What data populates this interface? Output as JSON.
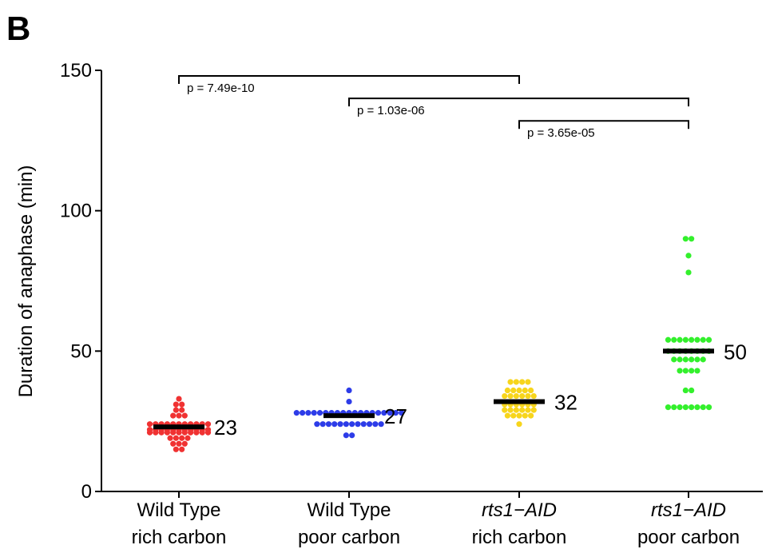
{
  "panel_label": "B",
  "chart_data": {
    "type": "scatter",
    "title": "",
    "ylabel": "Duration of anaphase (min)",
    "xlabel": "",
    "ylim": [
      0,
      150
    ],
    "yticks": [
      0,
      50,
      100,
      150
    ],
    "categories": [
      {
        "line1": "Wild Type",
        "line2": "rich carbon",
        "italic_line1": false
      },
      {
        "line1": "Wild Type",
        "line2": "poor carbon",
        "italic_line1": false
      },
      {
        "line1": "rts1−AID",
        "line2": "rich carbon",
        "italic_line1": true
      },
      {
        "line1": "rts1−AID",
        "line2": "poor carbon",
        "italic_line1": true
      }
    ],
    "series": [
      {
        "color": "#f03232",
        "median": 23,
        "median_label": "23",
        "points": [
          {
            "y": 33,
            "n": 1
          },
          {
            "y": 31,
            "n": 2
          },
          {
            "y": 29,
            "n": 2
          },
          {
            "y": 27,
            "n": 3
          },
          {
            "y": 24,
            "n": 11
          },
          {
            "y": 22,
            "n": 11
          },
          {
            "y": 21,
            "n": 11
          },
          {
            "y": 19,
            "n": 4
          },
          {
            "y": 17,
            "n": 3
          },
          {
            "y": 15,
            "n": 2
          }
        ]
      },
      {
        "color": "#2d3ce8",
        "median": 27,
        "median_label": "27",
        "points": [
          {
            "y": 36,
            "n": 1
          },
          {
            "y": 32,
            "n": 1
          },
          {
            "y": 28,
            "n": 19
          },
          {
            "y": 24,
            "n": 12
          },
          {
            "y": 20,
            "n": 2
          }
        ]
      },
      {
        "color": "#f7d51c",
        "median": 32,
        "median_label": "32",
        "points": [
          {
            "y": 39,
            "n": 4
          },
          {
            "y": 36,
            "n": 5
          },
          {
            "y": 34,
            "n": 6
          },
          {
            "y": 31,
            "n": 6
          },
          {
            "y": 29,
            "n": 6
          },
          {
            "y": 27,
            "n": 5
          },
          {
            "y": 24,
            "n": 1
          }
        ]
      },
      {
        "color": "#33f02c",
        "median": 50,
        "median_label": "50",
        "points": [
          {
            "y": 90,
            "n": 2
          },
          {
            "y": 84,
            "n": 1
          },
          {
            "y": 78,
            "n": 1
          },
          {
            "y": 54,
            "n": 8
          },
          {
            "y": 50,
            "n": 8
          },
          {
            "y": 47,
            "n": 6
          },
          {
            "y": 43,
            "n": 4
          },
          {
            "y": 36,
            "n": 2
          },
          {
            "y": 30,
            "n": 8
          }
        ]
      }
    ],
    "comparisons": [
      {
        "from": 0,
        "to": 2,
        "y": 148,
        "label": "p = 7.49e-10"
      },
      {
        "from": 1,
        "to": 3,
        "y": 140,
        "label": "p = 1.03e-06"
      },
      {
        "from": 2,
        "to": 3,
        "y": 132,
        "label": "p = 3.65e-05"
      }
    ]
  }
}
